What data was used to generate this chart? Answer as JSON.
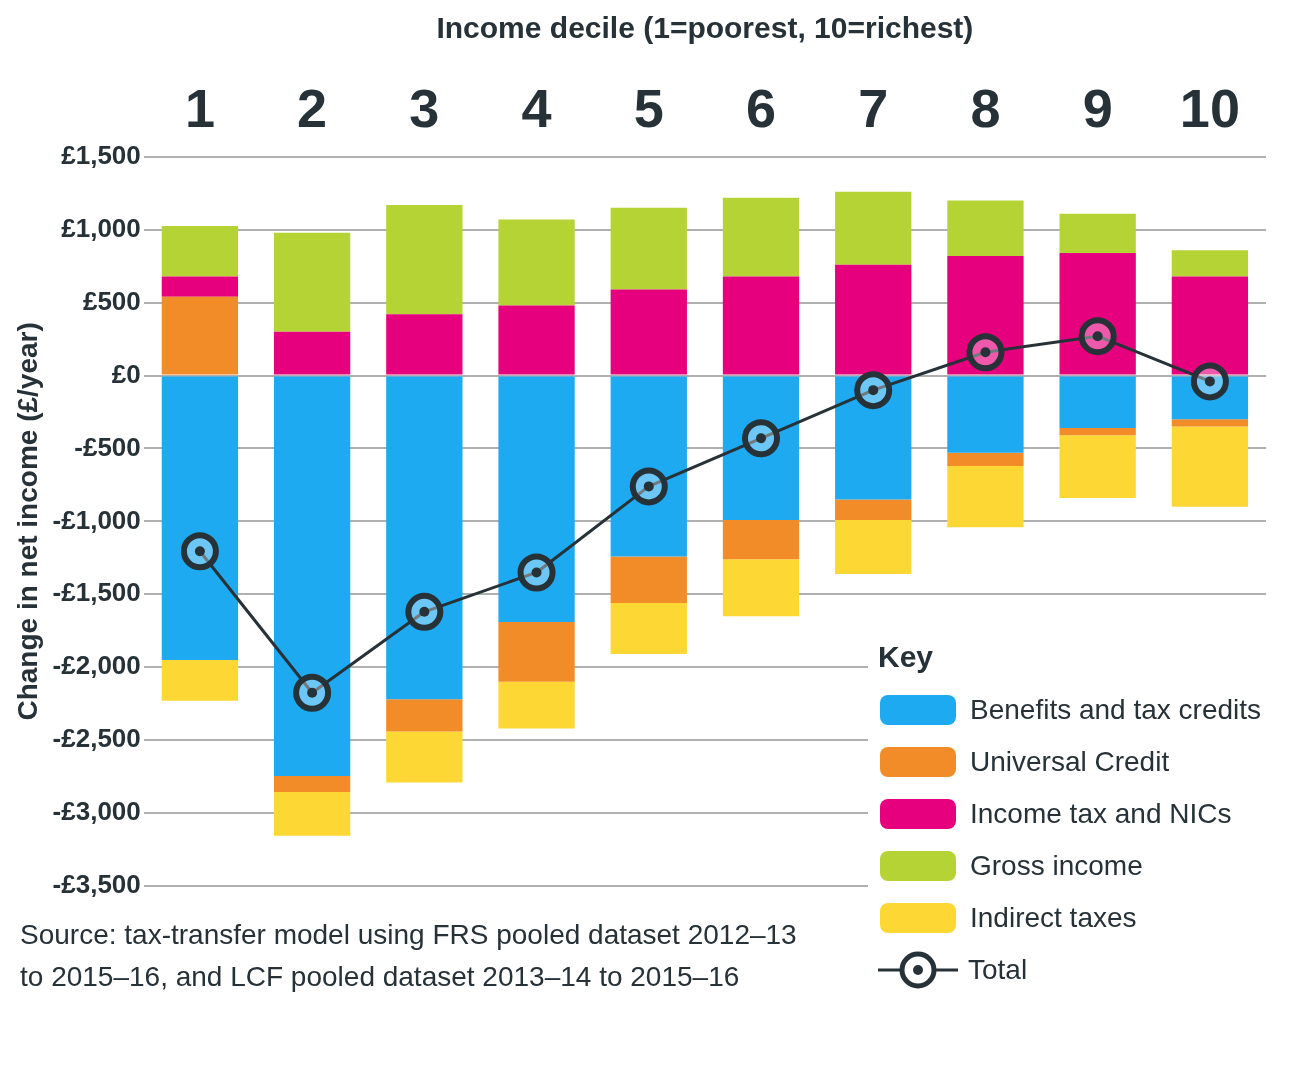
{
  "chart_data": {
    "type": "bar",
    "stacked": true,
    "xlabel": "Income decile (1=poorest, 10=richest)",
    "ylabel": "Change in net income (£/year)",
    "categories": [
      "1",
      "2",
      "3",
      "4",
      "5",
      "6",
      "7",
      "8",
      "9",
      "10"
    ],
    "ylim": [
      -3500,
      1500
    ],
    "yticks": [
      {
        "value": 1500,
        "label": "£1,500"
      },
      {
        "value": 1000,
        "label": "£1,000"
      },
      {
        "value": 500,
        "label": "£500"
      },
      {
        "value": 0,
        "label": "£0"
      },
      {
        "value": -500,
        "label": "-£500"
      },
      {
        "value": -1000,
        "label": "-£1,000"
      },
      {
        "value": -1500,
        "label": "-£1,500"
      },
      {
        "value": -2000,
        "label": "-£2,000"
      },
      {
        "value": -2500,
        "label": "-£2,500"
      },
      {
        "value": -3000,
        "label": "-£3,000"
      },
      {
        "value": -3500,
        "label": "-£3,500"
      }
    ],
    "grid": "y",
    "legend": "bottom right",
    "legend_title": "Key",
    "series": [
      {
        "name": "Benefits and tax credits",
        "color": "#1eaaf1",
        "values": [
          -1950,
          -2745,
          -2220,
          -1690,
          -1240,
          -990,
          -850,
          -530,
          -360,
          -300
        ]
      },
      {
        "name": "Universal Credit",
        "color": "#f28c28",
        "values": [
          540,
          -110,
          -220,
          -410,
          -320,
          -270,
          -140,
          -90,
          -50,
          -50
        ]
      },
      {
        "name": "Income tax and NICs",
        "color": "#e6007e",
        "values": [
          140,
          300,
          420,
          480,
          590,
          680,
          760,
          820,
          840,
          680
        ]
      },
      {
        "name": "Gross income",
        "color": "#b5d334",
        "values": [
          345,
          680,
          750,
          590,
          560,
          540,
          500,
          380,
          270,
          180
        ]
      },
      {
        "name": "Indirect taxes",
        "color": "#fdd835",
        "values": [
          -280,
          -300,
          -350,
          -320,
          -350,
          -390,
          -370,
          -420,
          -430,
          -550
        ]
      },
      {
        "name": "Total",
        "type": "line",
        "color": "#263238",
        "marker": "circle",
        "line_style": "solid",
        "values": [
          -1205,
          -2175,
          -1620,
          -1350,
          -760,
          -430,
          -100,
          160,
          270,
          -40
        ]
      }
    ],
    "annotations": [
      "Source: tax-transfer model using FRS pooled dataset 2012–13 to 2015–16, and LCF pooled dataset 2013–14 to 2015–16"
    ]
  }
}
